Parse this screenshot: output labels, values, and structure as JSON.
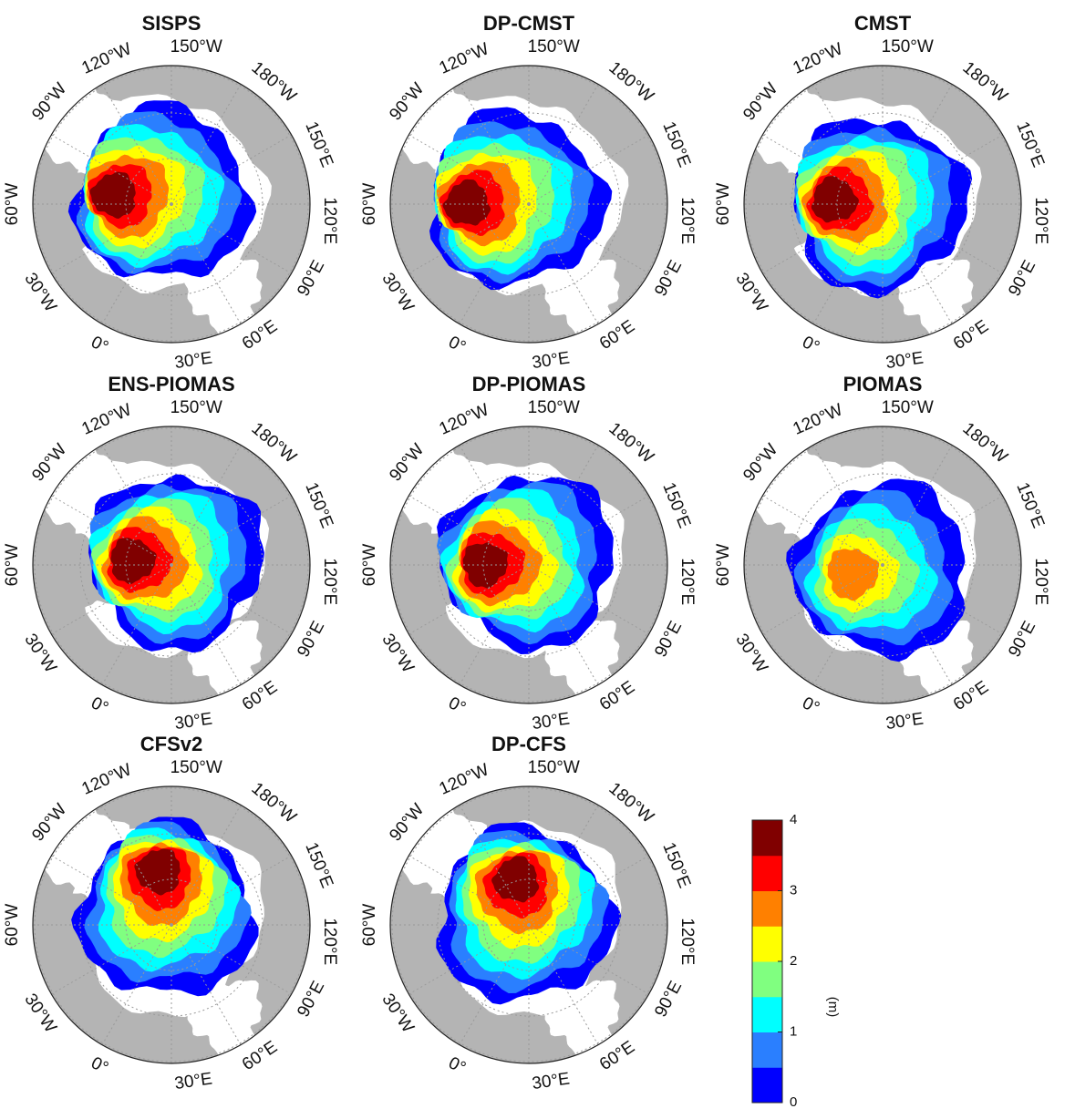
{
  "panels": [
    {
      "title": "SISPS"
    },
    {
      "title": "DP-CMST"
    },
    {
      "title": "CMST"
    },
    {
      "title": "ENS-PIOMAS"
    },
    {
      "title": "DP-PIOMAS"
    },
    {
      "title": "PIOMAS"
    },
    {
      "title": "CFSv2"
    },
    {
      "title": "DP-CFS"
    }
  ],
  "longitude_labels": [
    "150°W",
    "180°W",
    "150°E",
    "120°E",
    "90°E",
    "60°E",
    "30°E",
    "0°",
    "30°W",
    "60°W",
    "90°W",
    "120°W"
  ],
  "colorbar": {
    "range": [
      0,
      4
    ],
    "ticks": [
      0,
      1,
      2,
      3,
      4
    ],
    "label": "(m)",
    "colors": [
      "#0000ff",
      "#2a7fff",
      "#00ffff",
      "#80ff80",
      "#ffff00",
      "#ff8000",
      "#ff0000",
      "#800000"
    ]
  }
}
